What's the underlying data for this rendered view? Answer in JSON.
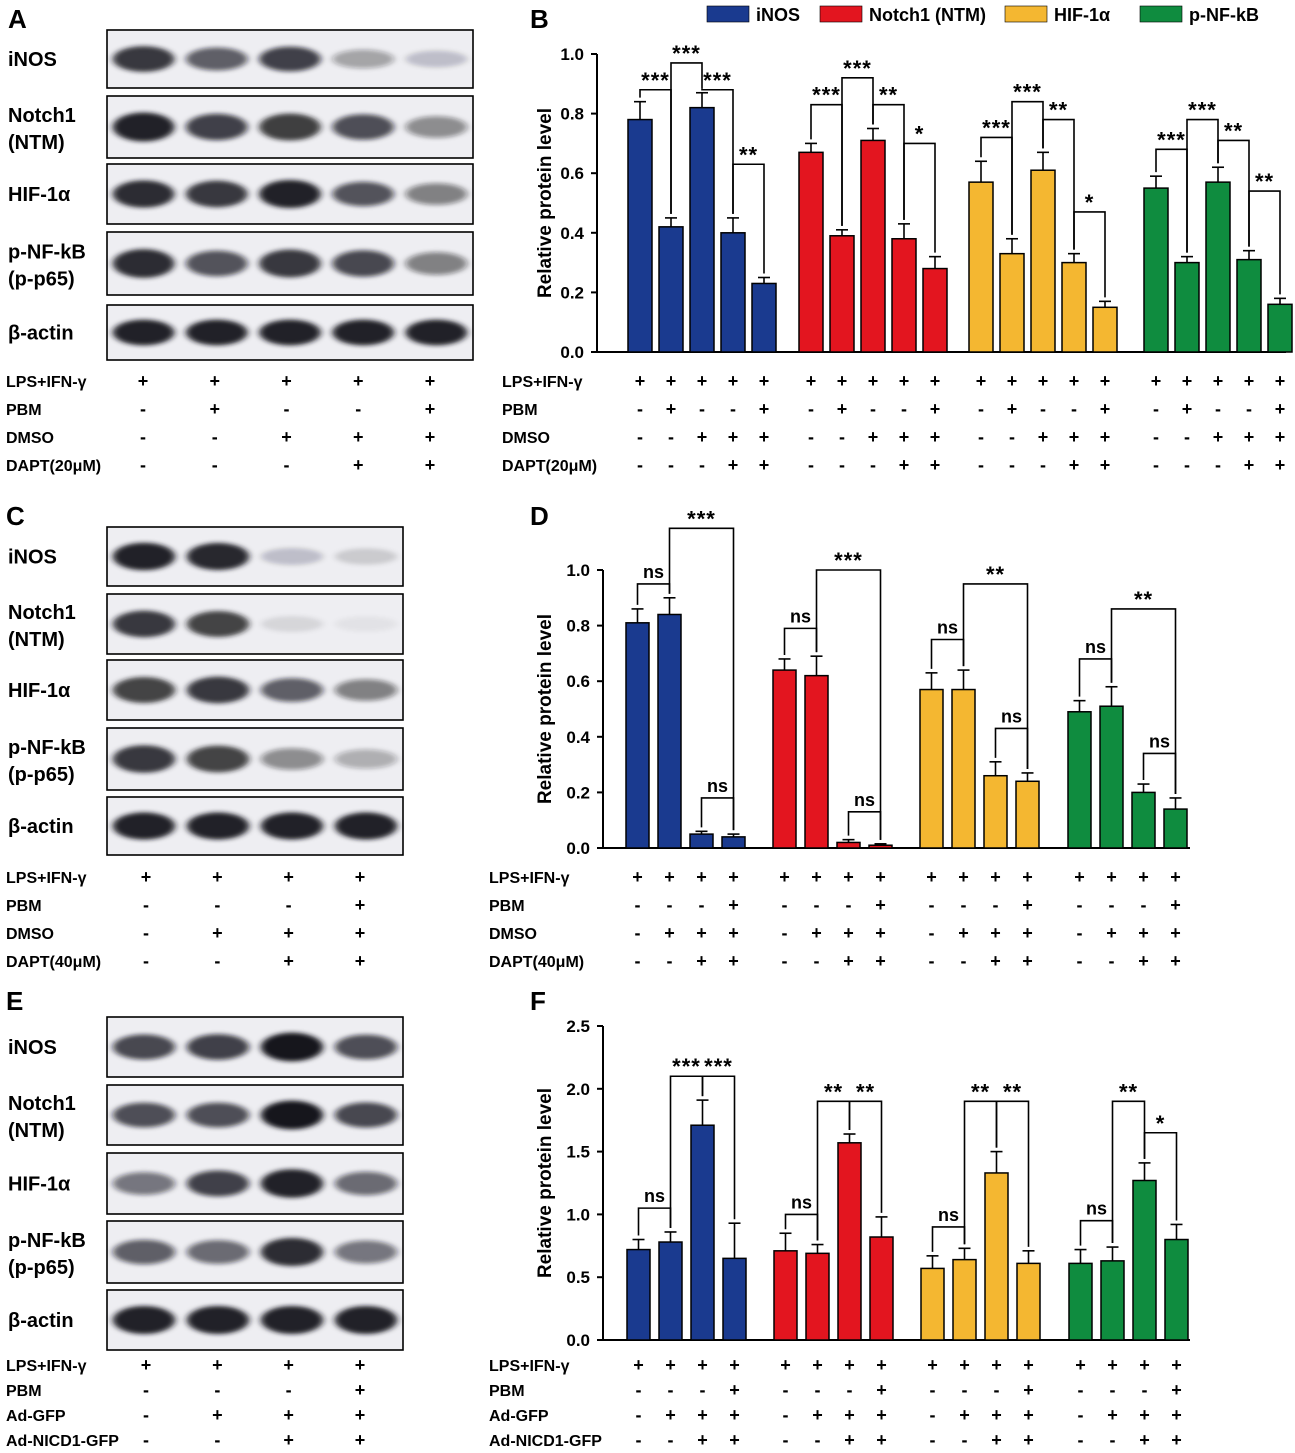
{
  "legend": [
    {
      "label": "iNOS",
      "color": "#1a3a8f"
    },
    {
      "label": "Notch1 (NTM)",
      "color": "#e3151f"
    },
    {
      "label": "HIF-1α",
      "color": "#f4b731"
    },
    {
      "label": "p-NF-kB",
      "color": "#0f8c3f"
    }
  ],
  "blots": [
    {
      "letter": "A",
      "lanes": 5,
      "rows": [
        {
          "label": [
            "iNOS"
          ],
          "intensity": [
            0.85,
            0.65,
            0.78,
            0.35,
            0.2
          ]
        },
        {
          "label": [
            "Notch1",
            "(NTM)"
          ],
          "intensity": [
            0.95,
            0.78,
            0.82,
            0.72,
            0.45
          ]
        },
        {
          "label": [
            "HIF-1α"
          ],
          "intensity": [
            0.9,
            0.85,
            0.95,
            0.7,
            0.5
          ]
        },
        {
          "label": [
            "p-NF-kB",
            "(p-p65)"
          ],
          "intensity": [
            0.9,
            0.7,
            0.85,
            0.75,
            0.5
          ]
        },
        {
          "label": [
            "β-actin"
          ],
          "intensity": [
            0.95,
            0.95,
            0.95,
            0.95,
            0.95
          ]
        }
      ],
      "conditions": [
        {
          "label": "LPS+IFN-γ",
          "values": [
            "+",
            "+",
            "+",
            "+",
            "+"
          ]
        },
        {
          "label": "PBM",
          "values": [
            "-",
            "+",
            "-",
            "-",
            "+"
          ]
        },
        {
          "label": "DMSO",
          "values": [
            "-",
            "-",
            "+",
            "+",
            "+"
          ]
        },
        {
          "label": "DAPT(20μM)",
          "values": [
            "-",
            "-",
            "-",
            "+",
            "+"
          ]
        }
      ]
    },
    {
      "letter": "C",
      "lanes": 4,
      "rows": [
        {
          "label": [
            "iNOS"
          ],
          "intensity": [
            0.95,
            0.92,
            0.2,
            0.15
          ]
        },
        {
          "label": [
            "Notch1",
            "(NTM)"
          ],
          "intensity": [
            0.85,
            0.8,
            0.1,
            0.05
          ]
        },
        {
          "label": [
            "HIF-1α"
          ],
          "intensity": [
            0.8,
            0.85,
            0.65,
            0.5
          ]
        },
        {
          "label": [
            "p-NF-kB",
            "(p-p65)"
          ],
          "intensity": [
            0.85,
            0.8,
            0.45,
            0.3
          ]
        },
        {
          "label": [
            "β-actin"
          ],
          "intensity": [
            0.95,
            0.95,
            0.95,
            0.95
          ]
        }
      ],
      "conditions": [
        {
          "label": "LPS+IFN-γ",
          "values": [
            "+",
            "+",
            "+",
            "+"
          ]
        },
        {
          "label": "PBM",
          "values": [
            "-",
            "-",
            "-",
            "+"
          ]
        },
        {
          "label": "DMSO",
          "values": [
            "-",
            "+",
            "+",
            "+"
          ]
        },
        {
          "label": "DAPT(40μM)",
          "values": [
            "-",
            "-",
            "+",
            "+"
          ]
        }
      ]
    },
    {
      "letter": "E",
      "lanes": 4,
      "rows": [
        {
          "label": [
            "iNOS"
          ],
          "intensity": [
            0.75,
            0.78,
            1.0,
            0.72
          ]
        },
        {
          "label": [
            "Notch1",
            "(NTM)"
          ],
          "intensity": [
            0.72,
            0.72,
            1.0,
            0.75
          ]
        },
        {
          "label": [
            "HIF-1α"
          ],
          "intensity": [
            0.55,
            0.78,
            0.95,
            0.6
          ]
        },
        {
          "label": [
            "p-NF-kB",
            "(p-p65)"
          ],
          "intensity": [
            0.65,
            0.6,
            0.9,
            0.55
          ]
        },
        {
          "label": [
            "β-actin"
          ],
          "intensity": [
            0.95,
            0.95,
            0.95,
            0.95
          ]
        }
      ],
      "conditions": [
        {
          "label": "LPS+IFN-γ",
          "values": [
            "+",
            "+",
            "+",
            "+"
          ]
        },
        {
          "label": "PBM",
          "values": [
            "-",
            "-",
            "-",
            "+"
          ]
        },
        {
          "label": "Ad-GFP",
          "values": [
            "-",
            "+",
            "+",
            "+"
          ]
        },
        {
          "label": "Ad-NICD1-GFP",
          "values": [
            "-",
            "-",
            "+",
            "+"
          ]
        }
      ]
    }
  ],
  "chart_data": [
    {
      "letter": "B",
      "type": "bar",
      "ylabel": "Relative protein level",
      "ylim": [
        0,
        1.0
      ],
      "yticks": [
        "0.0",
        "0.2",
        "0.4",
        "0.6",
        "0.8",
        "1.0"
      ],
      "series": [
        {
          "name": "iNOS",
          "values": [
            0.78,
            0.42,
            0.82,
            0.4,
            0.23
          ],
          "errors": [
            0.06,
            0.03,
            0.05,
            0.05,
            0.02
          ]
        },
        {
          "name": "Notch1 (NTM)",
          "values": [
            0.67,
            0.39,
            0.71,
            0.38,
            0.28
          ],
          "errors": [
            0.03,
            0.02,
            0.04,
            0.05,
            0.04
          ]
        },
        {
          "name": "HIF-1α",
          "values": [
            0.57,
            0.33,
            0.61,
            0.3,
            0.15
          ],
          "errors": [
            0.07,
            0.05,
            0.06,
            0.03,
            0.02
          ]
        },
        {
          "name": "p-NF-kB",
          "values": [
            0.55,
            0.3,
            0.57,
            0.31,
            0.16
          ],
          "errors": [
            0.04,
            0.02,
            0.05,
            0.03,
            0.02
          ]
        }
      ],
      "significance": [
        [
          {
            "a": 0,
            "b": 1,
            "label": "***",
            "level": 0.88
          },
          {
            "a": 1,
            "b": 2,
            "label": "***",
            "level": 0.97
          },
          {
            "a": 2,
            "b": 3,
            "label": "***",
            "level": 0.88
          },
          {
            "a": 3,
            "b": 4,
            "label": "**",
            "level": 0.63
          }
        ],
        [
          {
            "a": 0,
            "b": 1,
            "label": "***",
            "level": 0.83
          },
          {
            "a": 1,
            "b": 2,
            "label": "***",
            "level": 0.92
          },
          {
            "a": 2,
            "b": 3,
            "label": "**",
            "level": 0.83
          },
          {
            "a": 3,
            "b": 4,
            "label": "*",
            "level": 0.7
          }
        ],
        [
          {
            "a": 0,
            "b": 1,
            "label": "***",
            "level": 0.72
          },
          {
            "a": 1,
            "b": 2,
            "label": "***",
            "level": 0.84
          },
          {
            "a": 2,
            "b": 3,
            "label": "**",
            "level": 0.78
          },
          {
            "a": 3,
            "b": 4,
            "label": "*",
            "level": 0.47
          }
        ],
        [
          {
            "a": 0,
            "b": 1,
            "label": "***",
            "level": 0.68
          },
          {
            "a": 1,
            "b": 2,
            "label": "***",
            "level": 0.78
          },
          {
            "a": 2,
            "b": 3,
            "label": "**",
            "level": 0.71
          },
          {
            "a": 3,
            "b": 4,
            "label": "**",
            "level": 0.54
          }
        ]
      ],
      "conditions": [
        {
          "label": "LPS+IFN-γ",
          "values": [
            "+",
            "+",
            "+",
            "+",
            "+"
          ]
        },
        {
          "label": "PBM",
          "values": [
            "-",
            "+",
            "-",
            "-",
            "+"
          ]
        },
        {
          "label": "DMSO",
          "values": [
            "-",
            "-",
            "+",
            "+",
            "+"
          ]
        },
        {
          "label": "DAPT(20μM)",
          "values": [
            "-",
            "-",
            "-",
            "+",
            "+"
          ]
        }
      ]
    },
    {
      "letter": "D",
      "type": "bar",
      "ylabel": "Relative protein level",
      "ylim": [
        0,
        1.0
      ],
      "yticks": [
        "0.0",
        "0.2",
        "0.4",
        "0.6",
        "0.8",
        "1.0"
      ],
      "series": [
        {
          "name": "iNOS",
          "values": [
            0.81,
            0.84,
            0.05,
            0.04
          ],
          "errors": [
            0.05,
            0.06,
            0.01,
            0.01
          ]
        },
        {
          "name": "Notch1 (NTM)",
          "values": [
            0.64,
            0.62,
            0.02,
            0.01
          ],
          "errors": [
            0.04,
            0.07,
            0.01,
            0.005
          ]
        },
        {
          "name": "HIF-1α",
          "values": [
            0.57,
            0.57,
            0.26,
            0.24
          ],
          "errors": [
            0.06,
            0.07,
            0.05,
            0.03
          ]
        },
        {
          "name": "p-NF-kB",
          "values": [
            0.49,
            0.51,
            0.2,
            0.14
          ],
          "errors": [
            0.04,
            0.07,
            0.03,
            0.04
          ]
        }
      ],
      "significance": [
        [
          {
            "a": 0,
            "b": 1,
            "label": "ns",
            "level": 0.95
          },
          {
            "a": 1,
            "b": 3,
            "label": "***",
            "level": 1.15
          },
          {
            "a": 2,
            "b": 3,
            "label": "ns",
            "level": 0.18
          }
        ],
        [
          {
            "a": 0,
            "b": 1,
            "label": "ns",
            "level": 0.79
          },
          {
            "a": 1,
            "b": 3,
            "label": "***",
            "level": 1.0
          },
          {
            "a": 2,
            "b": 3,
            "label": "ns",
            "level": 0.13
          }
        ],
        [
          {
            "a": 0,
            "b": 1,
            "label": "ns",
            "level": 0.75
          },
          {
            "a": 1,
            "b": 3,
            "label": "**",
            "level": 0.95
          },
          {
            "a": 2,
            "b": 3,
            "label": "ns",
            "level": 0.43
          }
        ],
        [
          {
            "a": 0,
            "b": 1,
            "label": "ns",
            "level": 0.68
          },
          {
            "a": 1,
            "b": 3,
            "label": "**",
            "level": 0.86
          },
          {
            "a": 2,
            "b": 3,
            "label": "ns",
            "level": 0.34
          }
        ]
      ],
      "conditions": [
        {
          "label": "LPS+IFN-γ",
          "values": [
            "+",
            "+",
            "+",
            "+"
          ]
        },
        {
          "label": "PBM",
          "values": [
            "-",
            "-",
            "-",
            "+"
          ]
        },
        {
          "label": "DMSO",
          "values": [
            "-",
            "+",
            "+",
            "+"
          ]
        },
        {
          "label": "DAPT(40μM)",
          "values": [
            "-",
            "-",
            "+",
            "+"
          ]
        }
      ]
    },
    {
      "letter": "F",
      "type": "bar",
      "ylabel": "Relative protein level",
      "ylim": [
        0,
        2.5
      ],
      "yticks": [
        "0.0",
        "0.5",
        "1.0",
        "1.5",
        "2.0",
        "2.5"
      ],
      "series": [
        {
          "name": "iNOS",
          "values": [
            0.72,
            0.78,
            1.71,
            0.65
          ],
          "errors": [
            0.08,
            0.08,
            0.2,
            0.28
          ]
        },
        {
          "name": "Notch1 (NTM)",
          "values": [
            0.71,
            0.69,
            1.57,
            0.82
          ],
          "errors": [
            0.14,
            0.07,
            0.07,
            0.16
          ]
        },
        {
          "name": "HIF-1α",
          "values": [
            0.57,
            0.64,
            1.33,
            0.61
          ],
          "errors": [
            0.1,
            0.09,
            0.17,
            0.1
          ]
        },
        {
          "name": "p-NF-kB",
          "values": [
            0.61,
            0.63,
            1.27,
            0.8
          ],
          "errors": [
            0.11,
            0.11,
            0.14,
            0.12
          ]
        }
      ],
      "significance": [
        [
          {
            "a": 0,
            "b": 1,
            "label": "ns",
            "level": 1.05
          },
          {
            "a": 1,
            "b": 2,
            "label": "***",
            "level": 2.1
          },
          {
            "a": 2,
            "b": 3,
            "label": "***",
            "level": 2.1
          }
        ],
        [
          {
            "a": 0,
            "b": 1,
            "label": "ns",
            "level": 1.0
          },
          {
            "a": 1,
            "b": 2,
            "label": "**",
            "level": 1.9
          },
          {
            "a": 2,
            "b": 3,
            "label": "**",
            "level": 1.9
          }
        ],
        [
          {
            "a": 0,
            "b": 1,
            "label": "ns",
            "level": 0.9
          },
          {
            "a": 1,
            "b": 2,
            "label": "**",
            "level": 1.9
          },
          {
            "a": 2,
            "b": 3,
            "label": "**",
            "level": 1.9
          }
        ],
        [
          {
            "a": 0,
            "b": 1,
            "label": "ns",
            "level": 0.95
          },
          {
            "a": 1,
            "b": 2,
            "label": "**",
            "level": 1.9
          },
          {
            "a": 2,
            "b": 3,
            "label": "*",
            "level": 1.65
          }
        ]
      ],
      "conditions": [
        {
          "label": "LPS+IFN-γ",
          "values": [
            "+",
            "+",
            "+",
            "+"
          ]
        },
        {
          "label": "PBM",
          "values": [
            "-",
            "-",
            "-",
            "+"
          ]
        },
        {
          "label": "Ad-GFP",
          "values": [
            "-",
            "+",
            "+",
            "+"
          ]
        },
        {
          "label": "Ad-NICD1-GFP",
          "values": [
            "-",
            "-",
            "+",
            "+"
          ]
        }
      ]
    }
  ]
}
